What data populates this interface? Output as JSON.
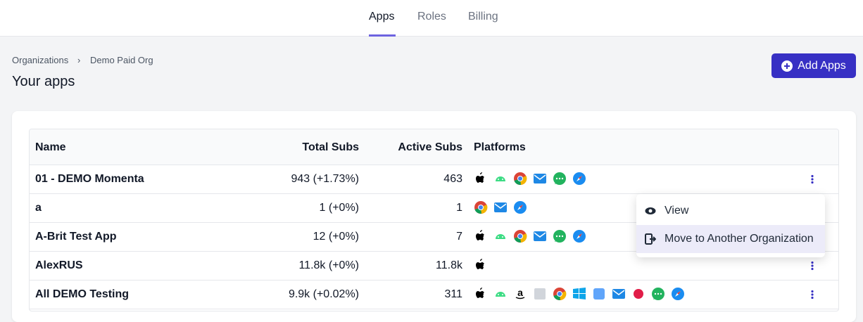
{
  "nav": {
    "tabs": [
      "Apps",
      "Roles",
      "Billing"
    ]
  },
  "breadcrumb": [
    "Organizations",
    "Demo Paid Org"
  ],
  "title": "Your apps",
  "add_button": "Add Apps",
  "table": {
    "headers": [
      "Name",
      "Total Subs",
      "Active Subs",
      "Platforms"
    ],
    "rows": [
      {
        "name": "01 - DEMO Momenta",
        "total_subs": "943 (+1.73%)",
        "active_subs": "463"
      },
      {
        "name": "a",
        "total_subs": "1 (+0%)",
        "active_subs": "1"
      },
      {
        "name": "A-Brit Test App",
        "total_subs": "12 (+0%)",
        "active_subs": "7"
      },
      {
        "name": "AlexRUS",
        "total_subs": "11.8k (+0%)",
        "active_subs": "11.8k"
      },
      {
        "name": "All DEMO Testing",
        "total_subs": "9.9k (+0.02%)",
        "active_subs": "311"
      }
    ]
  },
  "menu": {
    "items": [
      "View",
      "Move to Another Organization"
    ]
  }
}
